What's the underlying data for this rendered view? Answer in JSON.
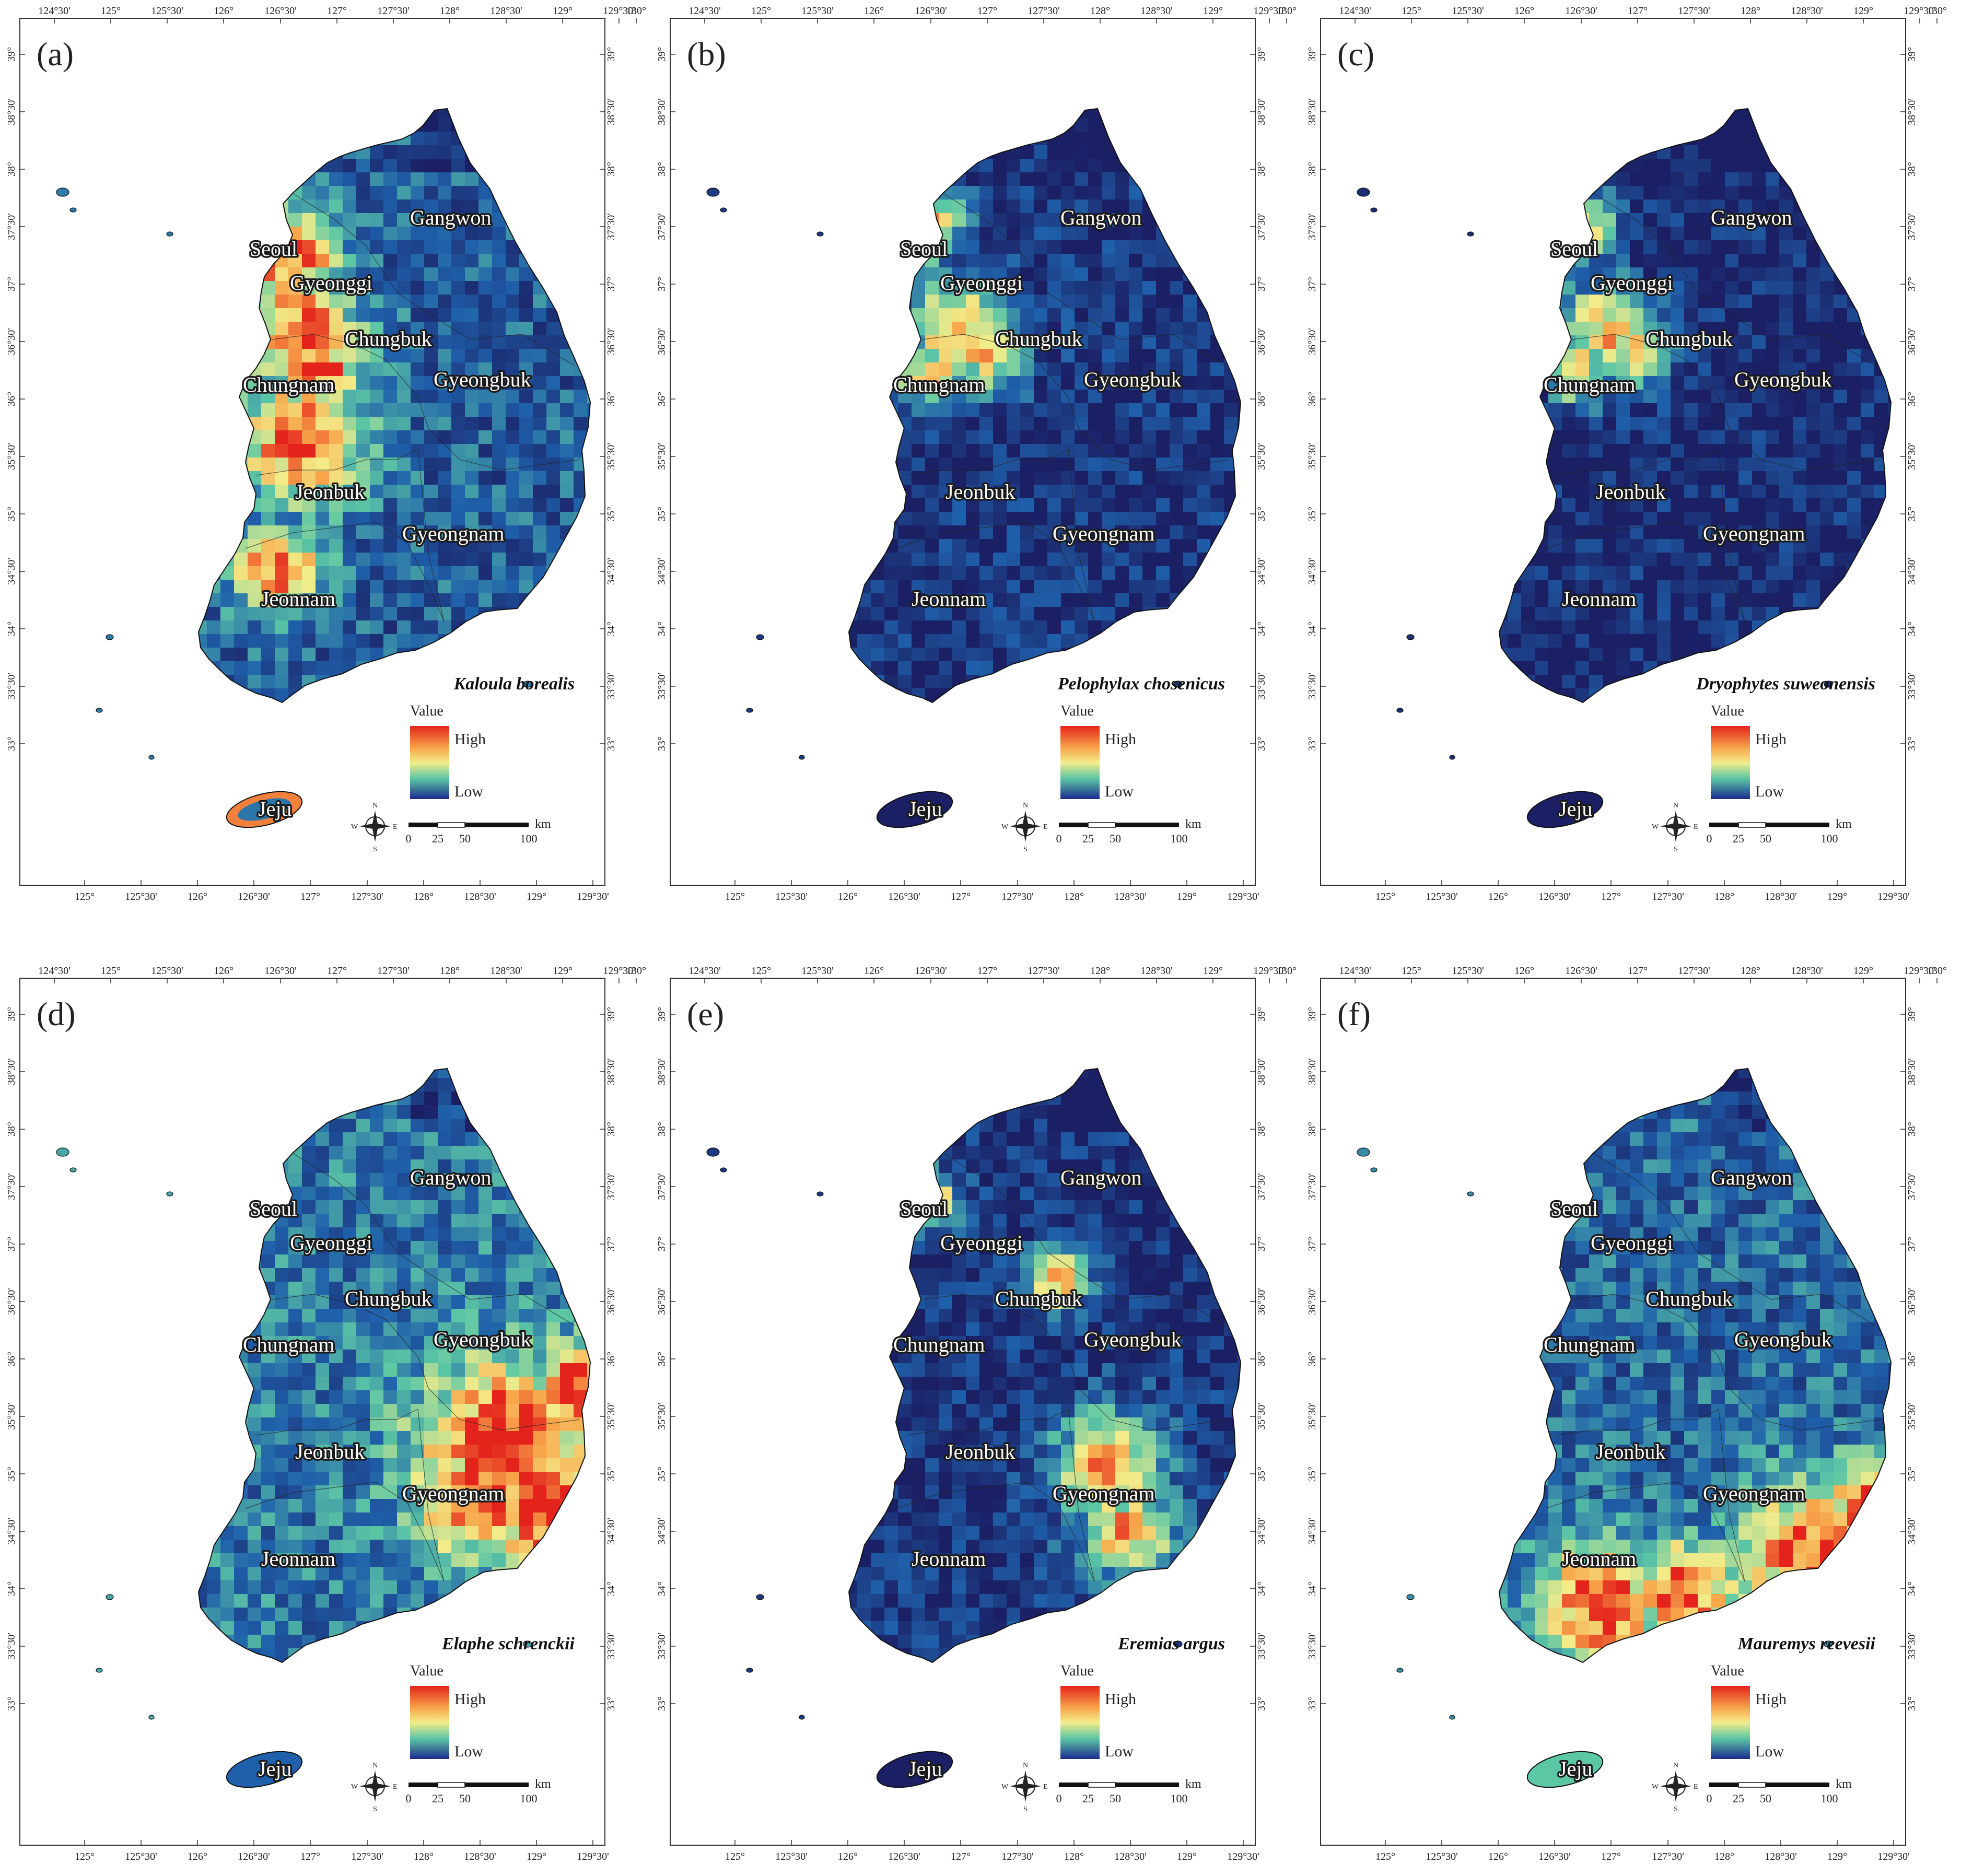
{
  "figure": {
    "lon_ticks_top": [
      "124°30'",
      "125°",
      "125°30'",
      "126°",
      "126°30'",
      "127°",
      "127°30'",
      "128°",
      "128°30'",
      "129°",
      "129°30'",
      "130°"
    ],
    "lon_ticks_bottom": [
      "125°",
      "125°30'",
      "126°",
      "126°30'",
      "127°",
      "127°30'",
      "128°",
      "128°30'",
      "129°",
      "129°30'"
    ],
    "lat_ticks": [
      "39°",
      "38°30'",
      "38°",
      "37°30'",
      "37°",
      "36°30'",
      "36°",
      "35°30'",
      "35°",
      "34°30'",
      "34°",
      "33°30'",
      "33°"
    ],
    "region_labels": [
      "Seoul",
      "Gyeonggi",
      "Gangwon",
      "Chungbuk",
      "Chungnam",
      "Gyeongbuk",
      "Jeonbuk",
      "Gyeongnam",
      "Jeonnam",
      "Jeju"
    ],
    "legend": {
      "title": "Value",
      "high": "High",
      "low": "Low"
    },
    "scale_bar": {
      "unit": "km",
      "ticks": [
        "0",
        "25",
        "50",
        "100"
      ]
    },
    "compass": {
      "n": "N",
      "s": "S",
      "e": "E",
      "w": "W"
    },
    "colors": {
      "low": "#1e1f6e",
      "mid_low": "#1f6fb5",
      "mid": "#5cc7a5",
      "mid_high": "#f3ec8a",
      "high": "#e4231c"
    },
    "panels": [
      {
        "letter": "(a)",
        "species": "Kaloula borealis",
        "jeju_level": 0.9,
        "overall_level": 0.45,
        "hotspot": "west"
      },
      {
        "letter": "(b)",
        "species": "Pelophylax chosenicus",
        "jeju_level": 0.0,
        "overall_level": 0.15,
        "hotspot": "northwest"
      },
      {
        "letter": "(c)",
        "species": "Dryophytes suweonensis",
        "jeju_level": 0.0,
        "overall_level": 0.08,
        "hotspot": "northwest"
      },
      {
        "letter": "(d)",
        "species": "Elaphe schrenckii",
        "jeju_level": 0.25,
        "overall_level": 0.6,
        "hotspot": "east"
      },
      {
        "letter": "(e)",
        "species": "Eremias argus",
        "jeju_level": 0.0,
        "overall_level": 0.15,
        "hotspot": "central-east"
      },
      {
        "letter": "(f)",
        "species": "Mauremys reevesii",
        "jeju_level": 0.5,
        "overall_level": 0.5,
        "hotspot": "south"
      }
    ]
  }
}
